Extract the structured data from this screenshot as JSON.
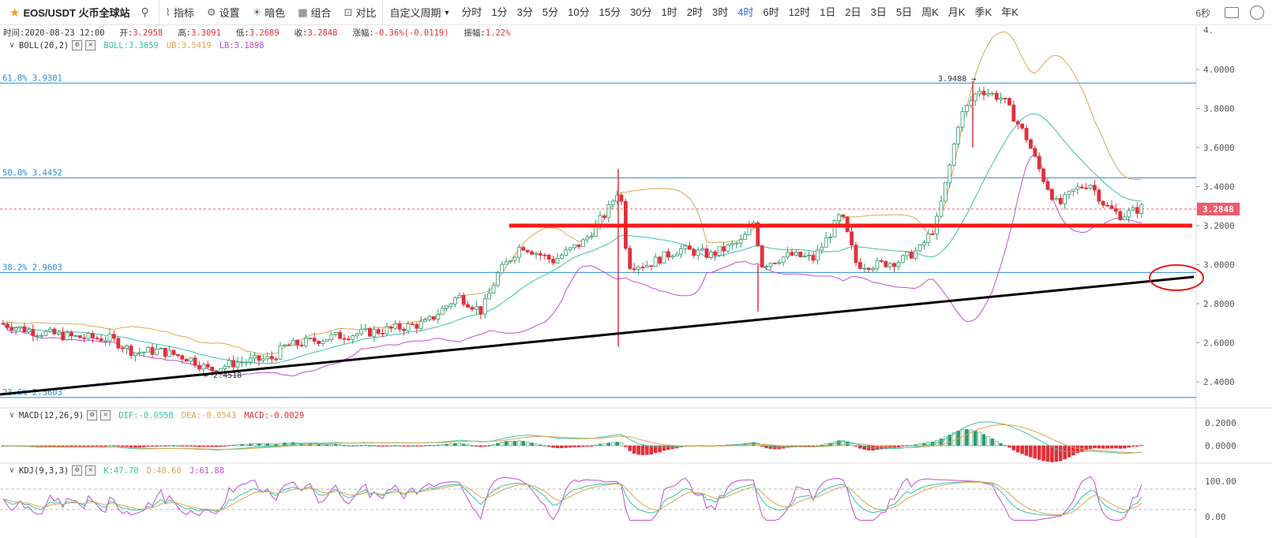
{
  "toolbar": {
    "symbol": "EOS/USDT 火币全球站",
    "indicators_label": "指标",
    "settings_label": "设置",
    "dark_label": "暗色",
    "combo_label": "组合",
    "compare_label": "对比",
    "custom_period_label": "自定义周期",
    "periods": [
      "分时",
      "1分",
      "3分",
      "5分",
      "10分",
      "15分",
      "30分",
      "1时",
      "2时",
      "3时",
      "4时",
      "6时",
      "12时",
      "1日",
      "2日",
      "3日",
      "5日",
      "周K",
      "月K",
      "季K",
      "年K"
    ],
    "active_period": "4时",
    "refresh_label": "6秒"
  },
  "ohlc": {
    "time_label": "时间:",
    "time": "2020-08-23 12:00",
    "open_label": "开:",
    "open": "3.2958",
    "high_label": "高:",
    "high": "3.3091",
    "low_label": "低:",
    "low": "3.2689",
    "close_label": "收:",
    "close": "3.2848",
    "change_label": "涨幅:",
    "change": "-0.36%(-0.0119)",
    "amplitude_label": "振幅:",
    "amplitude": "1.22%"
  },
  "boll": {
    "name": "BOLL(20,2)",
    "mid": "BOLL:3.3659",
    "ub": "UB:3.5419",
    "lb": "LB:3.1898"
  },
  "macd": {
    "name": "MACD(12,26,9)",
    "dif": "DIF:-0.0558",
    "dea": "DEA:-0.0543",
    "macd": "MACD:-0.0029"
  },
  "kdj": {
    "name": "KDJ(9,3,3)",
    "k": "K:47.70",
    "d": "D:40.60",
    "j": "J:61.88"
  },
  "fib_levels": [
    {
      "label": "61.8% 3.9301",
      "value": 3.9301
    },
    {
      "label": "50.0% 3.4452",
      "value": 3.4452
    },
    {
      "label": "38.2% 2.9603",
      "value": 2.9603
    },
    {
      "label": "23.6% 2.3603",
      "value": 2.3603
    }
  ],
  "price_axis": {
    "ticks": [
      "4.0000",
      "3.8000",
      "3.6000",
      "3.4000",
      "3.2000",
      "3.0000",
      "2.8000",
      "2.6000",
      "2.4000"
    ],
    "top_tick_partial": "4."
  },
  "macd_axis": {
    "ticks": [
      "0.2000",
      "0.0000"
    ]
  },
  "kdj_axis": {
    "ticks": [
      "100.00",
      "0.00"
    ]
  },
  "annotations": {
    "high_marker": "3.9488",
    "low_marker": "2.4518",
    "current_price": "3.2848"
  },
  "colors": {
    "up": "#2e9a6a",
    "down": "#e0303a",
    "boll_mid": "#3cc0a8",
    "boll_ub": "#d8a850",
    "boll_lb": "#c050d0",
    "fib": "#2a8ad8",
    "accent": "#2962ff",
    "price_tag": "#ef5b6a"
  },
  "icons": [
    "star-icon",
    "search-icon",
    "indicators-icon",
    "settings-icon",
    "dark-mode-icon",
    "combo-icon",
    "compare-icon",
    "camera-icon",
    "gear-icon"
  ]
}
